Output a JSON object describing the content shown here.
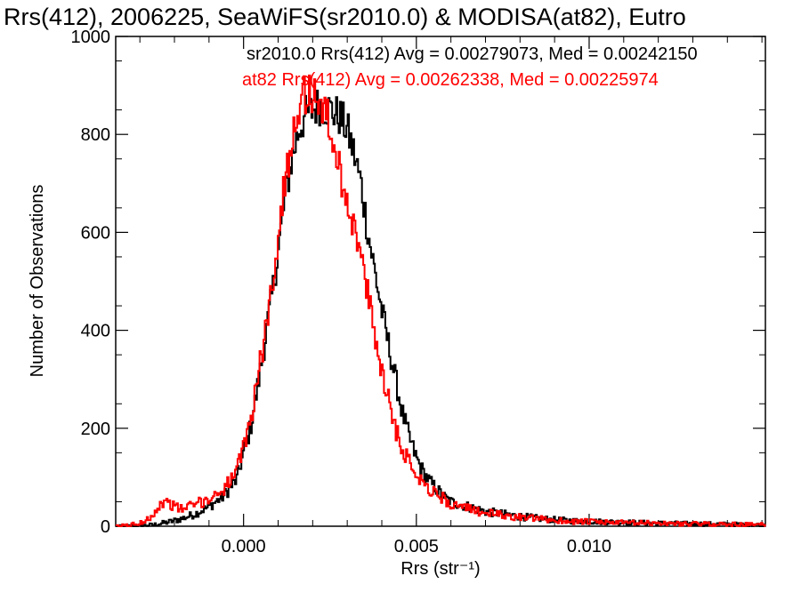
{
  "chart_data": {
    "type": "line",
    "title": "Rrs(412), 2006225, SeaWiFS(sr2010.0) & MODISA(at82), Eutro",
    "xlabel": "Rrs (str⁻¹)",
    "ylabel": "Number of Observations",
    "xlim": [
      -0.0037,
      0.0151
    ],
    "ylim": [
      0,
      1000
    ],
    "xticks": [
      0.0,
      0.005,
      0.01
    ],
    "xtick_labels": [
      "0.000",
      "0.005",
      "0.010"
    ],
    "yticks": [
      0,
      200,
      400,
      600,
      800,
      1000
    ],
    "ytick_labels": [
      "0",
      "200",
      "400",
      "600",
      "800",
      "1000"
    ],
    "grid": false,
    "legend_position": "top",
    "legend": [
      "sr2010.0 Rrs(412) Avg = 0.00279073, Med = 0.00242150",
      "at82 Rrs(412) Avg = 0.00262338, Med = 0.00225974"
    ],
    "colors": {
      "sr2010": "#000000",
      "at82": "#ff0000"
    },
    "series": [
      {
        "key": "sr2010",
        "x": [
          -0.0037,
          -0.003,
          -0.0026,
          -0.0022,
          -0.0018,
          -0.0014,
          -0.001,
          -0.0006,
          -0.0002,
          0.0,
          0.0002,
          0.0004,
          0.0006,
          0.0008,
          0.001,
          0.0012,
          0.0014,
          0.0016,
          0.0018,
          0.002,
          0.0022,
          0.0024,
          0.0026,
          0.0028,
          0.003,
          0.0032,
          0.0034,
          0.0036,
          0.0038,
          0.004,
          0.0042,
          0.0044,
          0.0046,
          0.0048,
          0.005,
          0.0052,
          0.0054,
          0.0056,
          0.0058,
          0.006,
          0.0065,
          0.007,
          0.0075,
          0.008,
          0.0085,
          0.009,
          0.0095,
          0.01,
          0.011,
          0.012,
          0.013,
          0.014,
          0.0151
        ],
        "y": [
          0,
          1,
          3,
          8,
          15,
          25,
          40,
          60,
          95,
          150,
          200,
          280,
          370,
          460,
          560,
          670,
          750,
          810,
          840,
          850,
          860,
          855,
          845,
          835,
          810,
          760,
          700,
          600,
          520,
          440,
          370,
          300,
          230,
          180,
          140,
          110,
          90,
          75,
          60,
          50,
          40,
          30,
          25,
          20,
          16,
          13,
          11,
          10,
          8,
          6,
          5,
          4,
          3
        ]
      },
      {
        "key": "at82",
        "x": [
          -0.0037,
          -0.003,
          -0.0026,
          -0.0024,
          -0.0022,
          -0.002,
          -0.0018,
          -0.0014,
          -0.001,
          -0.0006,
          -0.0002,
          0.0,
          0.0002,
          0.0004,
          0.0006,
          0.0008,
          0.001,
          0.0012,
          0.0014,
          0.0016,
          0.0018,
          0.002,
          0.0022,
          0.0024,
          0.0026,
          0.0028,
          0.003,
          0.0032,
          0.0034,
          0.0036,
          0.0038,
          0.004,
          0.0042,
          0.0044,
          0.0046,
          0.0048,
          0.005,
          0.0052,
          0.0054,
          0.0056,
          0.0058,
          0.006,
          0.0065,
          0.007,
          0.0075,
          0.008,
          0.0085,
          0.009,
          0.0095,
          0.01,
          0.011,
          0.012,
          0.013,
          0.014,
          0.0151
        ],
        "y": [
          0,
          5,
          25,
          45,
          50,
          40,
          35,
          45,
          55,
          75,
          110,
          160,
          215,
          300,
          380,
          480,
          590,
          700,
          800,
          860,
          885,
          880,
          870,
          840,
          780,
          720,
          670,
          610,
          550,
          470,
          390,
          320,
          260,
          200,
          160,
          130,
          110,
          90,
          75,
          65,
          55,
          45,
          35,
          28,
          22,
          18,
          15,
          12,
          10,
          9,
          7,
          6,
          5,
          4,
          3
        ]
      }
    ]
  }
}
